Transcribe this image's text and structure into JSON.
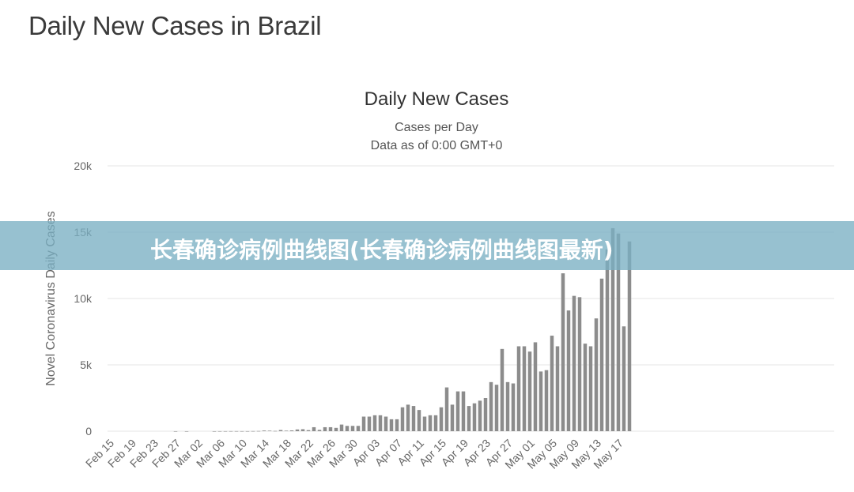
{
  "page": {
    "title": "Daily New Cases in Brazil",
    "overlay_caption": "长春确诊病例曲线图(长春确诊病例曲线图最新)",
    "overlay_color": "#7ab0c3"
  },
  "chart_data": {
    "type": "bar",
    "title": "Daily New Cases",
    "subtitle": "Cases per Day",
    "subtitle2": "Data as of 0:00 GMT+0",
    "xlabel": "",
    "ylabel": "Novel Coronavirus Daily Cases",
    "ylim": [
      0,
      20000
    ],
    "y_ticks": [
      0,
      5000,
      10000,
      15000,
      20000
    ],
    "y_tick_labels": [
      "0",
      "5k",
      "10k",
      "15k",
      "20k"
    ],
    "x_tick_labels": [
      "Feb 15",
      "Feb 19",
      "Feb 23",
      "Feb 27",
      "Mar 02",
      "Mar 06",
      "Mar 10",
      "Mar 14",
      "Mar 18",
      "Mar 22",
      "Mar 26",
      "Mar 30",
      "Apr 03",
      "Apr 07",
      "Apr 11",
      "Apr 15",
      "Apr 19",
      "Apr 23",
      "Apr 27",
      "May 01",
      "May 05",
      "May 09",
      "May 13",
      "May 17"
    ],
    "grid": true,
    "bar_color": "#8c8c8c",
    "categories": [
      "Feb 15",
      "Feb 16",
      "Feb 17",
      "Feb 18",
      "Feb 19",
      "Feb 20",
      "Feb 21",
      "Feb 22",
      "Feb 23",
      "Feb 24",
      "Feb 25",
      "Feb 26",
      "Feb 27",
      "Feb 28",
      "Feb 29",
      "Mar 01",
      "Mar 02",
      "Mar 03",
      "Mar 04",
      "Mar 05",
      "Mar 06",
      "Mar 07",
      "Mar 08",
      "Mar 09",
      "Mar 10",
      "Mar 11",
      "Mar 12",
      "Mar 13",
      "Mar 14",
      "Mar 15",
      "Mar 16",
      "Mar 17",
      "Mar 18",
      "Mar 19",
      "Mar 20",
      "Mar 21",
      "Mar 22",
      "Mar 23",
      "Mar 24",
      "Mar 25",
      "Mar 26",
      "Mar 27",
      "Mar 28",
      "Mar 29",
      "Mar 30",
      "Mar 31",
      "Apr 01",
      "Apr 02",
      "Apr 03",
      "Apr 04",
      "Apr 05",
      "Apr 06",
      "Apr 07",
      "Apr 08",
      "Apr 09",
      "Apr 10",
      "Apr 11",
      "Apr 12",
      "Apr 13",
      "Apr 14",
      "Apr 15",
      "Apr 16",
      "Apr 17",
      "Apr 18",
      "Apr 19",
      "Apr 20",
      "Apr 21",
      "Apr 22",
      "Apr 23",
      "Apr 24",
      "Apr 25",
      "Apr 26",
      "Apr 27",
      "Apr 28",
      "Apr 29",
      "Apr 30",
      "May 01",
      "May 02",
      "May 03",
      "May 04",
      "May 05",
      "May 06",
      "May 07",
      "May 08",
      "May 09",
      "May 10",
      "May 11",
      "May 12",
      "May 13",
      "May 14",
      "May 15",
      "May 16",
      "May 17",
      "May 18"
    ],
    "values": [
      0,
      0,
      0,
      0,
      0,
      0,
      0,
      0,
      0,
      0,
      0,
      1,
      0,
      1,
      0,
      0,
      0,
      0,
      1,
      4,
      5,
      6,
      6,
      5,
      5,
      9,
      15,
      50,
      40,
      20,
      90,
      40,
      60,
      130,
      150,
      80,
      300,
      100,
      300,
      300,
      250,
      500,
      400,
      400,
      400,
      1100,
      1100,
      1200,
      1200,
      1100,
      900,
      900,
      1800,
      2000,
      1900,
      1600,
      1100,
      1200,
      1200,
      1800,
      3300,
      2000,
      3000,
      3000,
      1900,
      2100,
      2300,
      2500,
      3700,
      3500,
      6200,
      3700,
      3600,
      6400,
      6400,
      6000,
      6700,
      4500,
      4600,
      7200,
      6400,
      11900,
      9100,
      10200,
      10100,
      6600,
      6400,
      8500,
      11500,
      13700,
      15300,
      14900,
      7900,
      14300
    ]
  }
}
